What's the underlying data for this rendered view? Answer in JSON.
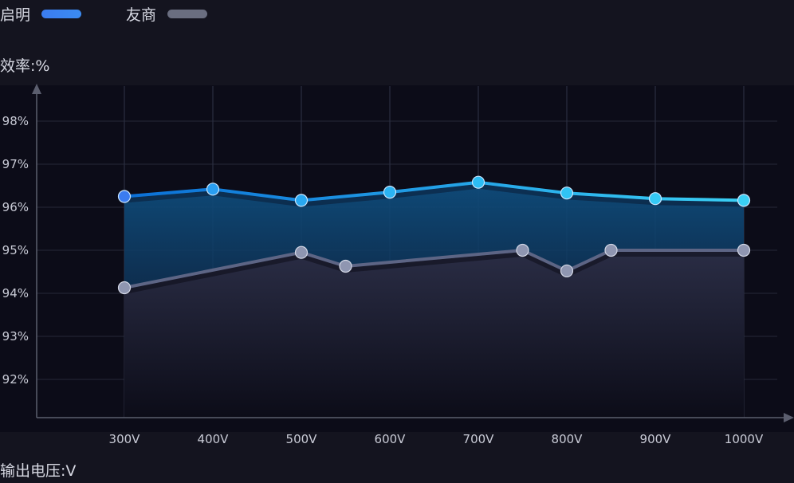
{
  "chart_data": {
    "type": "line",
    "xlabel": "输出电压:V",
    "ylabel": "效率:%",
    "categories": [
      "300V",
      "400V",
      "500V",
      "600V",
      "700V",
      "800V",
      "900V",
      "1000V"
    ],
    "ytick_labels": [
      "92%",
      "93%",
      "94%",
      "95%",
      "96%",
      "97%",
      "98%"
    ],
    "ylim": [
      91.1,
      98.8
    ],
    "grid": true,
    "legend_position": "top-left",
    "series": [
      {
        "name": "启明",
        "color": "#3b7cf0",
        "x": [
          300,
          400,
          500,
          600,
          700,
          800,
          900,
          1000
        ],
        "values": [
          96.25,
          96.42,
          96.16,
          96.35,
          96.58,
          96.33,
          96.2,
          96.16
        ]
      },
      {
        "name": "友商",
        "color": "#6a6e80",
        "x": [
          300,
          500,
          550,
          750,
          800,
          850,
          1000
        ],
        "values": [
          94.13,
          94.95,
          94.63,
          95.0,
          94.52,
          95.0,
          95.0
        ]
      }
    ]
  }
}
